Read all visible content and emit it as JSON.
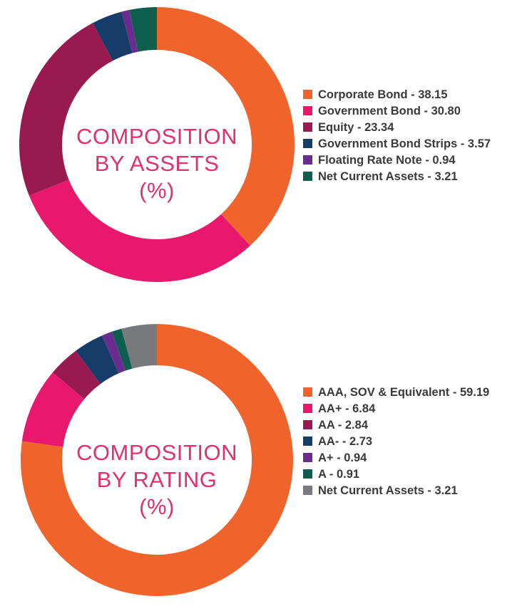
{
  "chart_data": [
    {
      "type": "pie",
      "variant": "donut",
      "center_text": [
        "COMPOSITION",
        "BY ASSETS",
        "(%)"
      ],
      "legend_placement": "right",
      "series": [
        {
          "name": "Corporate Bond",
          "value": 38.15,
          "label": "Corporate Bond - 38.15",
          "color": "#f0642c"
        },
        {
          "name": "Government Bond",
          "value": 30.8,
          "label": "Government Bond - 30.80",
          "color": "#e8186d"
        },
        {
          "name": "Equity",
          "value": 23.34,
          "label": "Equity - 23.34",
          "color": "#991a4e"
        },
        {
          "name": "Government Bond Strips",
          "value": 3.57,
          "label": "Government Bond Strips - 3.57",
          "color": "#163d6a"
        },
        {
          "name": "Floating Rate Note",
          "value": 0.94,
          "label": "Floating Rate Note - 0.94",
          "color": "#6a2c8e"
        },
        {
          "name": "Net Current Assets",
          "value": 3.21,
          "label": "Net Current Assets - 3.21",
          "color": "#0d5e4e"
        }
      ]
    },
    {
      "type": "pie",
      "variant": "donut",
      "center_text": [
        "COMPOSITION",
        "BY RATING",
        "(%)"
      ],
      "legend_placement": "right",
      "series": [
        {
          "name": "AAA, SOV & Equivalent",
          "value": 59.19,
          "label": "AAA, SOV & Equivalent - 59.19",
          "color": "#f0642c"
        },
        {
          "name": "AA+",
          "value": 6.84,
          "label": "AA+ - 6.84",
          "color": "#e8186d"
        },
        {
          "name": "AA",
          "value": 2.84,
          "label": "AA - 2.84",
          "color": "#991a4e"
        },
        {
          "name": "AA-",
          "value": 2.73,
          "label": "AA- - 2.73",
          "color": "#163d6a"
        },
        {
          "name": "A+",
          "value": 0.94,
          "label": "A+ - 0.94",
          "color": "#6a2c8e"
        },
        {
          "name": "A",
          "value": 0.91,
          "label": "A - 0.91",
          "color": "#0d5e4e"
        },
        {
          "name": "Net Current Assets",
          "value": 3.21,
          "label": "Net Current Assets - 3.21",
          "color": "#77797c"
        }
      ]
    }
  ]
}
